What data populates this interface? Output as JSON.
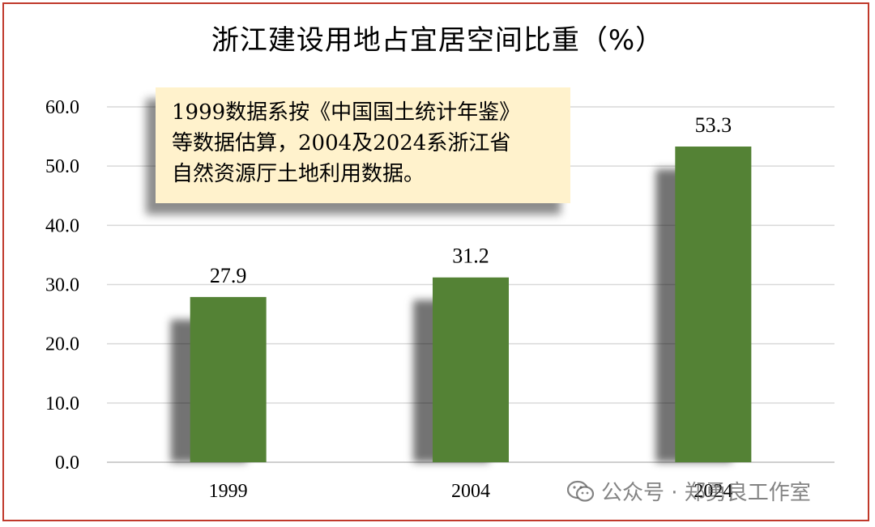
{
  "chart_data": {
    "type": "bar",
    "title": "浙江建设用地占宜居空间比重（%）",
    "categories": [
      "1999",
      "2004",
      "2024"
    ],
    "values": [
      27.9,
      31.2,
      53.3
    ],
    "data_labels": [
      "27.9",
      "31.2",
      "53.3"
    ],
    "ylim": [
      0,
      60
    ],
    "yticks": [
      "0.0",
      "10.0",
      "20.0",
      "30.0",
      "40.0",
      "50.0",
      "60.0"
    ],
    "ytick_values": [
      0,
      10,
      20,
      30,
      40,
      50,
      60
    ],
    "grid": true,
    "legend": "none",
    "bar_color": "#548235",
    "annotation": {
      "lines": [
        "1999数据系按《中国国土统计年鉴》",
        "等数据估算，2004及2024系浙江省",
        "自然资源厅土地利用数据。"
      ]
    }
  },
  "watermark": {
    "icon": "wechat-icon",
    "text": "公众号 · 郑勇良工作室"
  },
  "colors": {
    "frame": "#c0392b",
    "bar": "#548235",
    "annotation_bg": "#fff2cc",
    "grid": "#d9d9d9"
  }
}
